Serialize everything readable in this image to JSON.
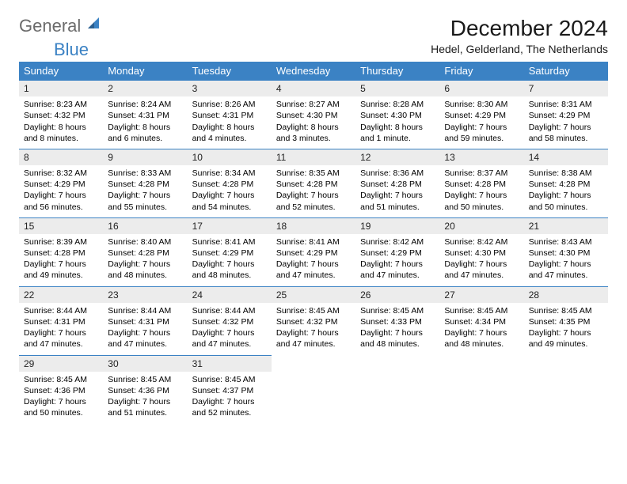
{
  "logo": {
    "text_general": "General",
    "text_blue": "Blue",
    "icon_color": "#3b82c4"
  },
  "title": "December 2024",
  "subtitle": "Hedel, Gelderland, The Netherlands",
  "colors": {
    "header_bg": "#3b82c4",
    "header_text": "#ffffff",
    "daynum_bg": "#ececec",
    "daynum_border": "#3b82c4",
    "text": "#000000",
    "logo_gray": "#6b6b6b"
  },
  "weekdays": [
    "Sunday",
    "Monday",
    "Tuesday",
    "Wednesday",
    "Thursday",
    "Friday",
    "Saturday"
  ],
  "weeks": [
    [
      {
        "day": "1",
        "sunrise": "Sunrise: 8:23 AM",
        "sunset": "Sunset: 4:32 PM",
        "daylight1": "Daylight: 8 hours",
        "daylight2": "and 8 minutes."
      },
      {
        "day": "2",
        "sunrise": "Sunrise: 8:24 AM",
        "sunset": "Sunset: 4:31 PM",
        "daylight1": "Daylight: 8 hours",
        "daylight2": "and 6 minutes."
      },
      {
        "day": "3",
        "sunrise": "Sunrise: 8:26 AM",
        "sunset": "Sunset: 4:31 PM",
        "daylight1": "Daylight: 8 hours",
        "daylight2": "and 4 minutes."
      },
      {
        "day": "4",
        "sunrise": "Sunrise: 8:27 AM",
        "sunset": "Sunset: 4:30 PM",
        "daylight1": "Daylight: 8 hours",
        "daylight2": "and 3 minutes."
      },
      {
        "day": "5",
        "sunrise": "Sunrise: 8:28 AM",
        "sunset": "Sunset: 4:30 PM",
        "daylight1": "Daylight: 8 hours",
        "daylight2": "and 1 minute."
      },
      {
        "day": "6",
        "sunrise": "Sunrise: 8:30 AM",
        "sunset": "Sunset: 4:29 PM",
        "daylight1": "Daylight: 7 hours",
        "daylight2": "and 59 minutes."
      },
      {
        "day": "7",
        "sunrise": "Sunrise: 8:31 AM",
        "sunset": "Sunset: 4:29 PM",
        "daylight1": "Daylight: 7 hours",
        "daylight2": "and 58 minutes."
      }
    ],
    [
      {
        "day": "8",
        "sunrise": "Sunrise: 8:32 AM",
        "sunset": "Sunset: 4:29 PM",
        "daylight1": "Daylight: 7 hours",
        "daylight2": "and 56 minutes."
      },
      {
        "day": "9",
        "sunrise": "Sunrise: 8:33 AM",
        "sunset": "Sunset: 4:28 PM",
        "daylight1": "Daylight: 7 hours",
        "daylight2": "and 55 minutes."
      },
      {
        "day": "10",
        "sunrise": "Sunrise: 8:34 AM",
        "sunset": "Sunset: 4:28 PM",
        "daylight1": "Daylight: 7 hours",
        "daylight2": "and 54 minutes."
      },
      {
        "day": "11",
        "sunrise": "Sunrise: 8:35 AM",
        "sunset": "Sunset: 4:28 PM",
        "daylight1": "Daylight: 7 hours",
        "daylight2": "and 52 minutes."
      },
      {
        "day": "12",
        "sunrise": "Sunrise: 8:36 AM",
        "sunset": "Sunset: 4:28 PM",
        "daylight1": "Daylight: 7 hours",
        "daylight2": "and 51 minutes."
      },
      {
        "day": "13",
        "sunrise": "Sunrise: 8:37 AM",
        "sunset": "Sunset: 4:28 PM",
        "daylight1": "Daylight: 7 hours",
        "daylight2": "and 50 minutes."
      },
      {
        "day": "14",
        "sunrise": "Sunrise: 8:38 AM",
        "sunset": "Sunset: 4:28 PM",
        "daylight1": "Daylight: 7 hours",
        "daylight2": "and 50 minutes."
      }
    ],
    [
      {
        "day": "15",
        "sunrise": "Sunrise: 8:39 AM",
        "sunset": "Sunset: 4:28 PM",
        "daylight1": "Daylight: 7 hours",
        "daylight2": "and 49 minutes."
      },
      {
        "day": "16",
        "sunrise": "Sunrise: 8:40 AM",
        "sunset": "Sunset: 4:28 PM",
        "daylight1": "Daylight: 7 hours",
        "daylight2": "and 48 minutes."
      },
      {
        "day": "17",
        "sunrise": "Sunrise: 8:41 AM",
        "sunset": "Sunset: 4:29 PM",
        "daylight1": "Daylight: 7 hours",
        "daylight2": "and 48 minutes."
      },
      {
        "day": "18",
        "sunrise": "Sunrise: 8:41 AM",
        "sunset": "Sunset: 4:29 PM",
        "daylight1": "Daylight: 7 hours",
        "daylight2": "and 47 minutes."
      },
      {
        "day": "19",
        "sunrise": "Sunrise: 8:42 AM",
        "sunset": "Sunset: 4:29 PM",
        "daylight1": "Daylight: 7 hours",
        "daylight2": "and 47 minutes."
      },
      {
        "day": "20",
        "sunrise": "Sunrise: 8:42 AM",
        "sunset": "Sunset: 4:30 PM",
        "daylight1": "Daylight: 7 hours",
        "daylight2": "and 47 minutes."
      },
      {
        "day": "21",
        "sunrise": "Sunrise: 8:43 AM",
        "sunset": "Sunset: 4:30 PM",
        "daylight1": "Daylight: 7 hours",
        "daylight2": "and 47 minutes."
      }
    ],
    [
      {
        "day": "22",
        "sunrise": "Sunrise: 8:44 AM",
        "sunset": "Sunset: 4:31 PM",
        "daylight1": "Daylight: 7 hours",
        "daylight2": "and 47 minutes."
      },
      {
        "day": "23",
        "sunrise": "Sunrise: 8:44 AM",
        "sunset": "Sunset: 4:31 PM",
        "daylight1": "Daylight: 7 hours",
        "daylight2": "and 47 minutes."
      },
      {
        "day": "24",
        "sunrise": "Sunrise: 8:44 AM",
        "sunset": "Sunset: 4:32 PM",
        "daylight1": "Daylight: 7 hours",
        "daylight2": "and 47 minutes."
      },
      {
        "day": "25",
        "sunrise": "Sunrise: 8:45 AM",
        "sunset": "Sunset: 4:32 PM",
        "daylight1": "Daylight: 7 hours",
        "daylight2": "and 47 minutes."
      },
      {
        "day": "26",
        "sunrise": "Sunrise: 8:45 AM",
        "sunset": "Sunset: 4:33 PM",
        "daylight1": "Daylight: 7 hours",
        "daylight2": "and 48 minutes."
      },
      {
        "day": "27",
        "sunrise": "Sunrise: 8:45 AM",
        "sunset": "Sunset: 4:34 PM",
        "daylight1": "Daylight: 7 hours",
        "daylight2": "and 48 minutes."
      },
      {
        "day": "28",
        "sunrise": "Sunrise: 8:45 AM",
        "sunset": "Sunset: 4:35 PM",
        "daylight1": "Daylight: 7 hours",
        "daylight2": "and 49 minutes."
      }
    ],
    [
      {
        "day": "29",
        "sunrise": "Sunrise: 8:45 AM",
        "sunset": "Sunset: 4:36 PM",
        "daylight1": "Daylight: 7 hours",
        "daylight2": "and 50 minutes."
      },
      {
        "day": "30",
        "sunrise": "Sunrise: 8:45 AM",
        "sunset": "Sunset: 4:36 PM",
        "daylight1": "Daylight: 7 hours",
        "daylight2": "and 51 minutes."
      },
      {
        "day": "31",
        "sunrise": "Sunrise: 8:45 AM",
        "sunset": "Sunset: 4:37 PM",
        "daylight1": "Daylight: 7 hours",
        "daylight2": "and 52 minutes."
      },
      {
        "empty": true
      },
      {
        "empty": true
      },
      {
        "empty": true
      },
      {
        "empty": true
      }
    ]
  ]
}
